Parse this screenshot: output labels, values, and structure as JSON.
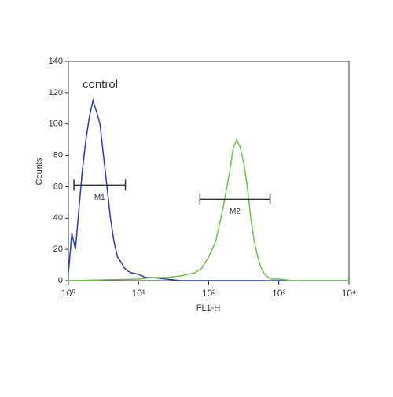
{
  "chart_data": {
    "type": "histogram-line",
    "xlabel": "FL1-H",
    "ylabel": "Counts",
    "xscale": "log",
    "xlim": [
      1,
      10000
    ],
    "ylim": [
      0,
      140
    ],
    "xticks": [
      {
        "value": 1,
        "label": "10⁰"
      },
      {
        "value": 10,
        "label": "10¹"
      },
      {
        "value": 100,
        "label": "10²"
      },
      {
        "value": 1000,
        "label": "10³"
      },
      {
        "value": 10000,
        "label": "10⁴"
      }
    ],
    "yticks": [
      0,
      20,
      40,
      60,
      80,
      100,
      120,
      140
    ],
    "series": [
      {
        "name": "control",
        "color": "#2b3ea8",
        "x": [
          1,
          1.12,
          1.26,
          1.41,
          1.58,
          1.78,
          2,
          2.24,
          2.51,
          2.82,
          3.16,
          3.55,
          3.98,
          4.47,
          5.01,
          5.62,
          6.31,
          7.08,
          7.94,
          10,
          12.6,
          15.8,
          25.1,
          39.8,
          63.1,
          100,
          316,
          1000,
          3162,
          10000
        ],
        "values": [
          5,
          30,
          20,
          45,
          70,
          90,
          105,
          115,
          108,
          100,
          80,
          60,
          40,
          25,
          15,
          12,
          8,
          6,
          5,
          4,
          2,
          2,
          1,
          0,
          0,
          0,
          0,
          0,
          0,
          0
        ]
      },
      {
        "color": "#6cc24a",
        "x": [
          1,
          10,
          15.8,
          25.1,
          39.8,
          63.1,
          79.4,
          100,
          126,
          158,
          200,
          224,
          251,
          282,
          316,
          355,
          398,
          447,
          501,
          562,
          631,
          708,
          794,
          1000,
          1585,
          3162,
          10000
        ],
        "values": [
          0,
          1,
          2,
          2,
          3,
          5,
          8,
          15,
          25,
          45,
          70,
          85,
          90,
          85,
          75,
          60,
          40,
          25,
          15,
          8,
          4,
          2,
          1,
          1,
          0,
          0,
          0
        ]
      }
    ],
    "gates": [
      {
        "label": "M1",
        "x": [
          1.2,
          6.5
        ],
        "y": 61
      },
      {
        "label": "M2",
        "x": [
          75,
          750
        ],
        "y": 52
      }
    ]
  }
}
